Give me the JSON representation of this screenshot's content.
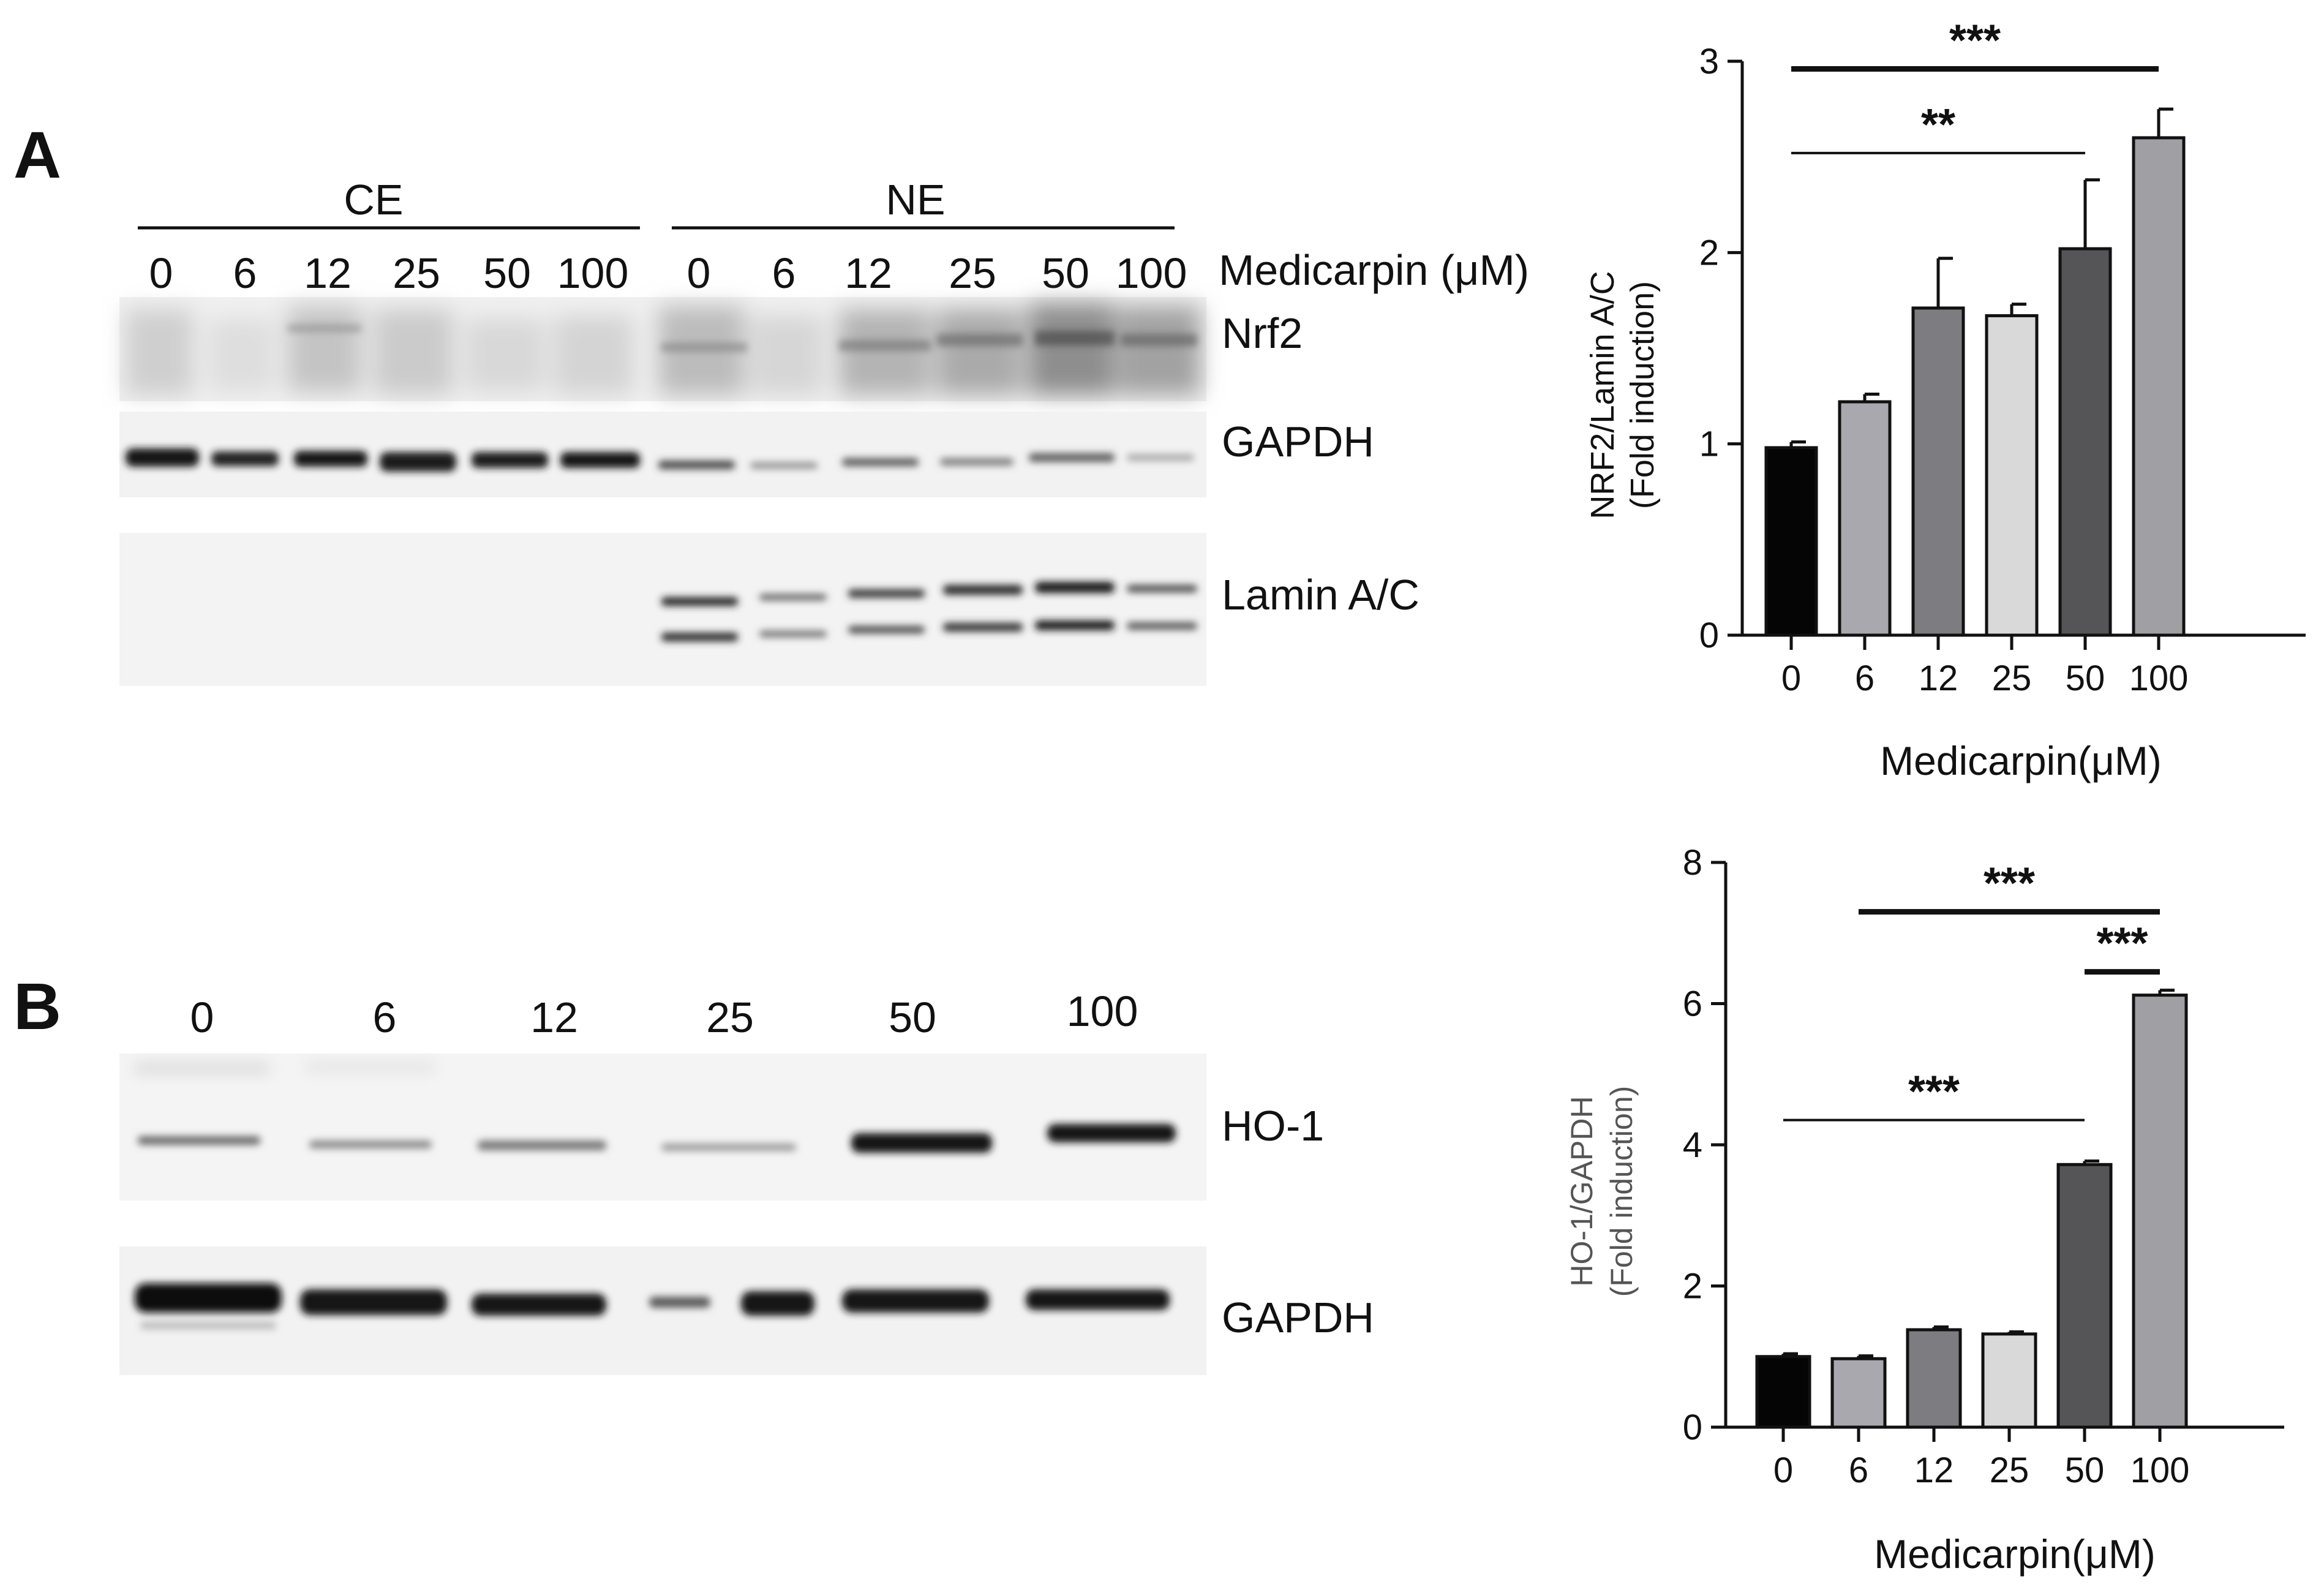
{
  "panel_a": {
    "letter": "A",
    "group_labels": [
      "CE",
      "NE"
    ],
    "lane_labels": [
      "0",
      "6",
      "12",
      "25",
      "50",
      "100",
      "0",
      "6",
      "12",
      "25",
      "50",
      "100"
    ],
    "treatment_label": "Medicarpin (μM)",
    "blot_labels": [
      "Nrf2",
      "GAPDH",
      "Lamin A/C"
    ]
  },
  "panel_b": {
    "letter": "B",
    "lane_labels": [
      "0",
      "6",
      "12",
      "25",
      "50",
      "100"
    ],
    "blot_labels": [
      "HO-1",
      "GAPDH"
    ]
  },
  "colors": {
    "bar_0": "#050505",
    "bar_6": "#a8a8ae",
    "bar_12": "#7d7d81",
    "bar_25": "#d9d9d9",
    "bar_50": "#555558",
    "bar_100": "#a0a0a4"
  },
  "chart_data": [
    {
      "type": "bar",
      "categories": [
        "0",
        "6",
        "12",
        "25",
        "50",
        "100"
      ],
      "values": [
        0.98,
        1.22,
        1.71,
        1.67,
        2.02,
        2.6
      ],
      "errors": [
        0.03,
        0.04,
        0.26,
        0.06,
        0.36,
        0.15
      ],
      "ylabel_lines": [
        "NRF2/Lamin A/C",
        "(Fold induction)"
      ],
      "xlabel": "Medicarpin(μM)",
      "ylim": [
        0,
        3
      ],
      "yticks": [
        0,
        1,
        2,
        3
      ],
      "grid": false,
      "annotations": [
        {
          "text": "***",
          "from": "0",
          "to": "100",
          "y": 2.96
        },
        {
          "text": "**",
          "from": "0",
          "to": "50",
          "y": 2.52
        }
      ]
    },
    {
      "type": "bar",
      "categories": [
        "0",
        "6",
        "12",
        "25",
        "50",
        "100"
      ],
      "values": [
        1.0,
        0.97,
        1.38,
        1.32,
        3.72,
        6.12
      ],
      "errors": [
        0.04,
        0.04,
        0.04,
        0.03,
        0.05,
        0.07
      ],
      "ylabel_lines": [
        "HO-1/GAPDH",
        "(Fold induction)"
      ],
      "xlabel": "Medicarpin(μM)",
      "ylim": [
        0,
        8
      ],
      "yticks": [
        0,
        2,
        4,
        6,
        8
      ],
      "grid": false,
      "annotations": [
        {
          "text": "***",
          "from": "6",
          "to": "100",
          "y": 7.3
        },
        {
          "text": "***",
          "from": "50",
          "to": "100",
          "y": 6.45
        },
        {
          "text": "***",
          "from": "0",
          "to": "50",
          "y": 4.35
        }
      ]
    }
  ]
}
